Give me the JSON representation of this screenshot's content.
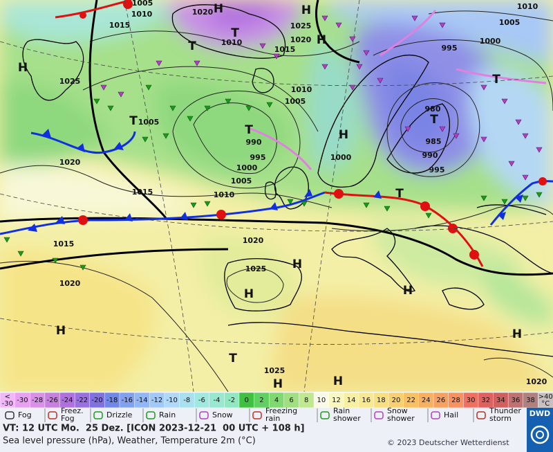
{
  "map": {
    "pressure_labels": [
      1005,
      1010,
      1015,
      1020,
      1025,
      1020,
      1015,
      1010,
      1025,
      1005,
      1020,
      1015,
      1010,
      1000,
      1005,
      995,
      990,
      1010,
      1005,
      1000,
      980,
      985,
      990,
      995,
      995,
      1000,
      1005,
      1010,
      1020,
      1025,
      1015,
      1020,
      1025,
      1020
    ],
    "highs": [
      "H",
      "H",
      "H",
      "H",
      "H",
      "H",
      "H",
      "H",
      "H",
      "H",
      "H",
      "H"
    ],
    "lows": [
      "T",
      "T",
      "T",
      "T",
      "T",
      "T",
      "T",
      "T"
    ]
  },
  "colorbar": {
    "below": "<",
    "below_value": -30,
    "steps": [
      -30,
      -28,
      -26,
      -24,
      -22,
      -20,
      -18,
      -16,
      -14,
      -12,
      -10,
      -8,
      -6,
      -4,
      -2,
      0,
      2,
      4,
      6,
      8,
      10,
      12,
      14,
      16,
      18,
      20,
      22,
      24,
      26,
      28,
      30,
      32,
      34,
      36,
      38
    ],
    "above": ">40",
    "unit": "°C"
  },
  "legend": [
    [
      "Fog"
    ],
    [
      "Freez.",
      "Fog"
    ],
    [
      "Drizzle"
    ],
    [
      "Rain"
    ],
    [
      "Snow"
    ],
    [
      "Freezing",
      "rain"
    ],
    [
      "Rain",
      "shower"
    ],
    [
      "Snow",
      "shower"
    ],
    [
      "Hail"
    ],
    [
      "Thunder",
      "storm"
    ]
  ],
  "footer": {
    "valid_time": "VT: 12 UTC Mo.  25 Dez. [ICON 2023-12-21  00 UTC + 108 h]",
    "description": "Sea level pressure (hPa), Weather, Temperature 2m (°C)",
    "copyright": "© 2023 Deutscher Wetterdienst",
    "logo": "DWD"
  }
}
